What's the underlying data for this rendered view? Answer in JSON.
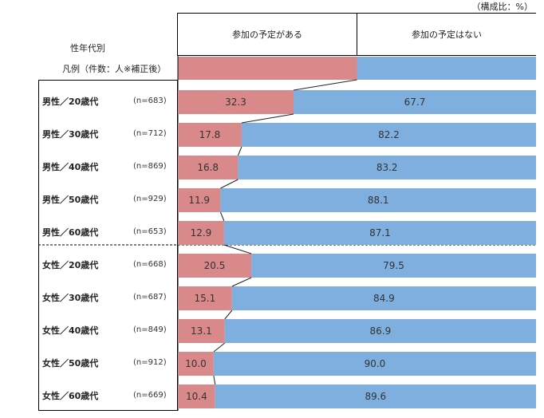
{
  "chart_data": {
    "type": "bar",
    "orientation": "horizontal-stacked-100",
    "unit_label": "（構成比：%）",
    "axis_title": "性年代別",
    "legend_label": "凡例（件数：人※補正後）",
    "series_labels": [
      "参加の予定がある",
      "参加の予定はない"
    ],
    "colors": [
      "#d9898a",
      "#7fafde"
    ],
    "categories": [
      "男性／20歳代",
      "男性／30歳代",
      "男性／40歳代",
      "男性／50歳代",
      "男性／60歳代",
      "女性／20歳代",
      "女性／30歳代",
      "女性／40歳代",
      "女性／50歳代",
      "女性／60歳代"
    ],
    "n": [
      "(n=683)",
      "(n=712)",
      "(n=869)",
      "(n=929)",
      "(n=653)",
      "(n=668)",
      "(n=687)",
      "(n=849)",
      "(n=912)",
      "(n=669)"
    ],
    "series": [
      {
        "name": "参加の予定がある",
        "values": [
          32.3,
          17.8,
          16.8,
          11.9,
          12.9,
          20.5,
          15.1,
          13.1,
          10.0,
          10.4
        ]
      },
      {
        "name": "参加の予定はない",
        "values": [
          67.7,
          82.2,
          83.2,
          88.1,
          87.1,
          79.5,
          84.9,
          86.9,
          90.0,
          89.6
        ]
      }
    ]
  }
}
